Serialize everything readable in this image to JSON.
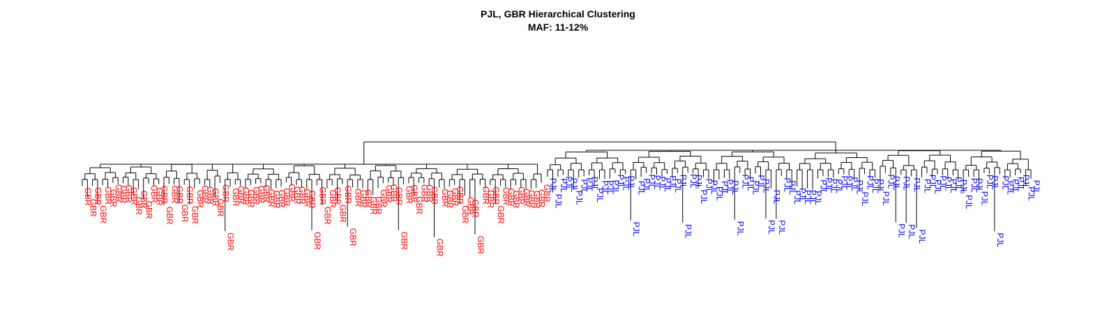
{
  "title": "PJL, GBR Hierarchical Clustering",
  "subtitle": "MAF: 11-12%",
  "colors": {
    "GBR": "#ff0000",
    "PJL": "#0000ff",
    "tree": "#000000"
  },
  "chart_data": {
    "type": "dendrogram",
    "title": "PJL, GBR Hierarchical Clustering",
    "subtitle": "MAF: 11-12%",
    "groups": [
      "GBR",
      "PJL"
    ],
    "leaf_counts": {
      "GBR": 91,
      "PJL": 94
    },
    "top_level_split": [
      "GBR",
      "PJL"
    ]
  }
}
